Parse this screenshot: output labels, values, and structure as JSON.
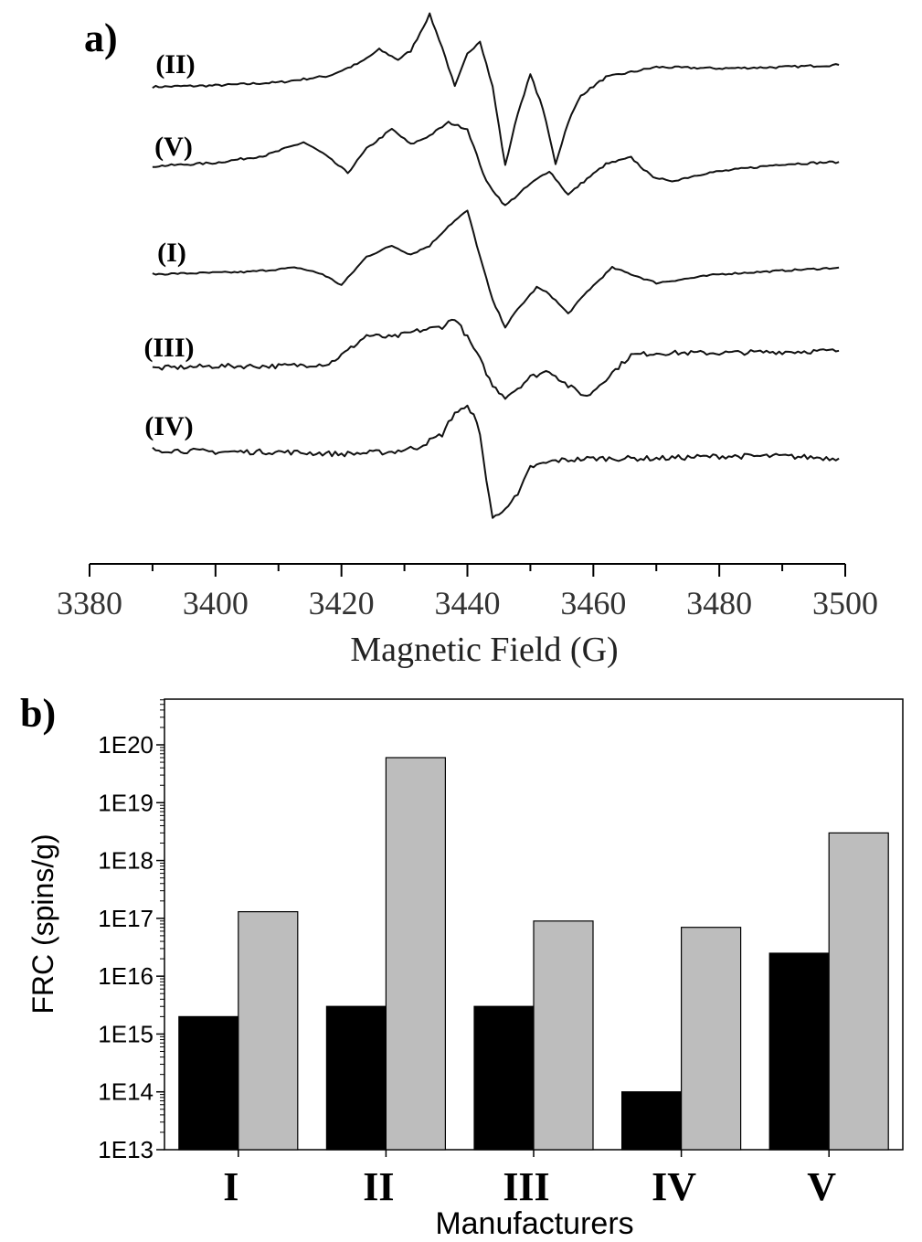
{
  "panel_a": {
    "label": "a)",
    "chart_data": {
      "type": "line",
      "xlabel": "Magnetic Field (G)",
      "ylabel": "",
      "xlim": [
        3380,
        3500
      ],
      "xticks": [
        3380,
        3400,
        3420,
        3440,
        3460,
        3480,
        3500
      ],
      "x_range": [
        3390,
        3499
      ],
      "y_axis": "none",
      "grid": false,
      "series": [
        {
          "name": "(II)",
          "offset": 0,
          "x": [
            3390,
            3400,
            3410,
            3418,
            3423,
            3426,
            3429,
            3431,
            3434,
            3436,
            3438,
            3440,
            3442,
            3444,
            3446,
            3448,
            3450,
            3452,
            3454,
            3456,
            3458,
            3462,
            3470,
            3480,
            3490,
            3499
          ],
          "y": [
            0,
            0.3,
            1.0,
            2.5,
            5.5,
            8.5,
            6.2,
            8.2,
            16.5,
            9.0,
            0.0,
            7.5,
            10.5,
            0.0,
            -18.0,
            -6.0,
            2.8,
            -5.0,
            -17.5,
            -8.0,
            -2.0,
            2.2,
            4.5,
            4.2,
            4.5,
            5.0
          ]
        },
        {
          "name": "(V)",
          "offset": -20,
          "x": [
            3390,
            3400,
            3408,
            3414,
            3417,
            3421,
            3424,
            3428,
            3431,
            3434,
            3437,
            3440,
            3443,
            3446,
            3450,
            3453,
            3456,
            3458,
            3462,
            3466,
            3469,
            3472,
            3478,
            3490,
            3499
          ],
          "y": [
            0,
            0.8,
            2.5,
            5.5,
            3.0,
            -1.5,
            4.0,
            8.5,
            5.0,
            7.0,
            10.0,
            8.5,
            -3.5,
            -9.0,
            -4.0,
            -1.0,
            -6.5,
            -4.0,
            0.5,
            2.0,
            -2.0,
            -3.5,
            -1.5,
            0.5,
            1.0
          ]
        },
        {
          "name": "(I)",
          "offset": -40,
          "x": [
            3390,
            3405,
            3413,
            3417,
            3420,
            3424,
            3428,
            3431,
            3434,
            3437,
            3440,
            3442,
            3444,
            3446,
            3448,
            3451,
            3453,
            3456,
            3459,
            3463,
            3466,
            3470,
            3480,
            3499
          ],
          "y": [
            0,
            0.5,
            1.5,
            0.0,
            -2.5,
            4.0,
            6.5,
            4.5,
            6.5,
            11.0,
            14.5,
            4.0,
            -6.0,
            -12.0,
            -8.0,
            -3.0,
            -4.5,
            -9.0,
            -4.0,
            1.5,
            0.0,
            -2.0,
            0.0,
            1.5
          ]
        },
        {
          "name": "(III)",
          "offset": -60,
          "x": [
            3390,
            3400,
            3410,
            3418,
            3421,
            3424,
            3428,
            3432,
            3436,
            3438,
            3440,
            3442,
            3444,
            3446,
            3448,
            3450,
            3453,
            3456,
            3459,
            3463,
            3466,
            3470,
            3480,
            3499
          ],
          "y": [
            0,
            0.5,
            0.5,
            1.0,
            4.0,
            7.5,
            7.0,
            8.5,
            9.5,
            11.5,
            7.0,
            2.0,
            -4.0,
            -6.5,
            -4.5,
            -2.0,
            -0.5,
            -4.0,
            -6.5,
            -1.0,
            3.0,
            3.5,
            3.5,
            4.0
          ]
        },
        {
          "name": "(IV)",
          "offset": -80,
          "x": [
            3390,
            3400,
            3410,
            3420,
            3428,
            3432,
            3436,
            3438,
            3440,
            3441,
            3442,
            3443,
            3444,
            3445,
            3446,
            3448,
            3450,
            3454,
            3460,
            3470,
            3480,
            3490,
            3499
          ],
          "y": [
            0,
            -0.5,
            -0.5,
            -1.0,
            -0.5,
            0.5,
            3.5,
            8.5,
            9.5,
            8.5,
            3.0,
            -6.5,
            -15.5,
            -15.0,
            -13.0,
            -10.5,
            -4.0,
            -2.5,
            -2.0,
            -2.0,
            -1.5,
            -1.5,
            -2.0
          ]
        }
      ]
    }
  },
  "panel_b": {
    "label": "b)",
    "chart_data": {
      "type": "bar",
      "scale": "log",
      "ylabel": "FRC (spins/g)",
      "xlabel": "Manufacturers",
      "ylim": [
        10000000000000.0,
        1e+21
      ],
      "ytick_labels": [
        "1E13",
        "1E14",
        "1E15",
        "1E16",
        "1E17",
        "1E18",
        "1E19",
        "1E20"
      ],
      "categories": [
        "I",
        "II",
        "III",
        "IV",
        "V"
      ],
      "grid": false,
      "series": [
        {
          "color": "#000000",
          "values": [
            2000000000000000.0,
            3000000000000000.0,
            3000000000000000.0,
            100000000000000.0,
            2.5e+16
          ]
        },
        {
          "color": "#bdbdbd",
          "values": [
            1.3e+17,
            6e+19,
            9e+16,
            7e+16,
            3e+18
          ]
        }
      ]
    }
  }
}
